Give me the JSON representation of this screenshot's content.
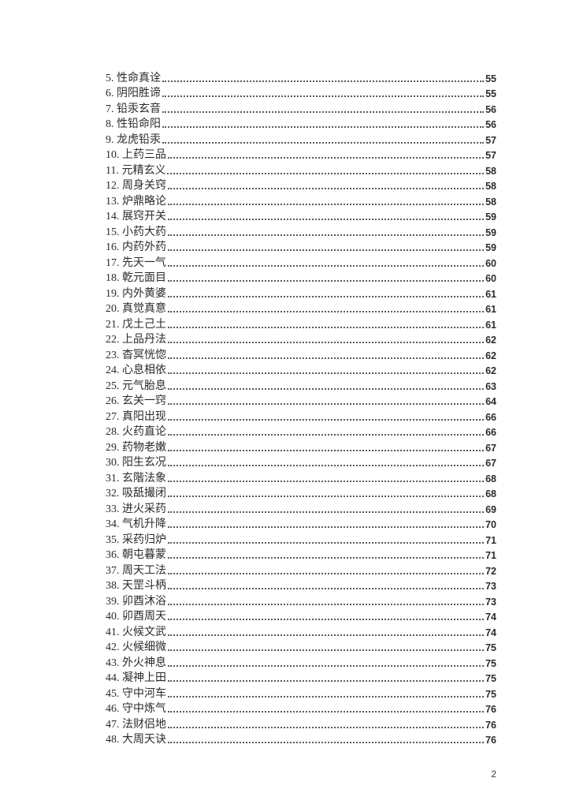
{
  "page": {
    "footer_page_number": "2"
  },
  "colors": {
    "background": "#ffffff",
    "text": "#2b2b2b",
    "dot_leader": "#5a5a5a"
  },
  "toc": {
    "entries": [
      {
        "num": "5",
        "title": "性命真诠",
        "page": "55"
      },
      {
        "num": "6",
        "title": "阴阳胜谛",
        "page": "55"
      },
      {
        "num": "7",
        "title": "铅汞玄音",
        "page": "56"
      },
      {
        "num": "8",
        "title": "性铅命阳",
        "page": "56"
      },
      {
        "num": "9",
        "title": "龙虎铅汞",
        "page": "57"
      },
      {
        "num": "10",
        "title": "上药三品",
        "page": "57"
      },
      {
        "num": "11",
        "title": "元精玄义",
        "page": "58"
      },
      {
        "num": "12",
        "title": "周身关窍",
        "page": "58"
      },
      {
        "num": "13",
        "title": "炉鼎略论",
        "page": "58"
      },
      {
        "num": "14",
        "title": "展窍开关",
        "page": "59"
      },
      {
        "num": "15",
        "title": "小药大药",
        "page": "59"
      },
      {
        "num": "16",
        "title": "内药外药",
        "page": "59"
      },
      {
        "num": "17",
        "title": "先天一气",
        "page": "60"
      },
      {
        "num": "18",
        "title": "乾元面目",
        "page": "60"
      },
      {
        "num": "19",
        "title": "内外黄婆",
        "page": "61"
      },
      {
        "num": "20",
        "title": "真觉真意",
        "page": "61"
      },
      {
        "num": "21",
        "title": "戊土己土",
        "page": "61"
      },
      {
        "num": "22",
        "title": "上品丹法",
        "page": "62"
      },
      {
        "num": "23",
        "title": "杳冥恍惚",
        "page": "62"
      },
      {
        "num": "24",
        "title": "心息相依",
        "page": "62"
      },
      {
        "num": "25",
        "title": "元气胎息",
        "page": "63"
      },
      {
        "num": "26",
        "title": "玄关一窍",
        "page": "64"
      },
      {
        "num": "27",
        "title": "真阳出现",
        "page": "66"
      },
      {
        "num": "28",
        "title": "火药直论",
        "page": "66"
      },
      {
        "num": "29",
        "title": "药物老嫩",
        "page": "67"
      },
      {
        "num": "30",
        "title": "阳生玄况",
        "page": "67"
      },
      {
        "num": "31",
        "title": "玄階法象",
        "page": "68"
      },
      {
        "num": "32",
        "title": "吸舐撮闭",
        "page": "68"
      },
      {
        "num": "33",
        "title": "进火采药",
        "page": "69"
      },
      {
        "num": "34",
        "title": "气机升降",
        "page": "70"
      },
      {
        "num": "35",
        "title": "采药归炉",
        "page": "71"
      },
      {
        "num": "36",
        "title": "朝屯暮蒙",
        "page": "71"
      },
      {
        "num": "37",
        "title": "周天工法",
        "page": "72"
      },
      {
        "num": "38",
        "title": "天罡斗柄",
        "page": "73"
      },
      {
        "num": "39",
        "title": "卯酉沐浴",
        "page": "73"
      },
      {
        "num": "40",
        "title": "卯酉周天",
        "page": "74"
      },
      {
        "num": "41",
        "title": "火候文武",
        "page": "74"
      },
      {
        "num": "42",
        "title": "火候细微",
        "page": "75"
      },
      {
        "num": "43",
        "title": "外火神息",
        "page": "75"
      },
      {
        "num": "44",
        "title": "凝神上田",
        "page": "75"
      },
      {
        "num": "45",
        "title": "守中河车",
        "page": "75"
      },
      {
        "num": "46",
        "title": "守中炼气",
        "page": "76"
      },
      {
        "num": "47",
        "title": "法财侣地",
        "page": "76"
      },
      {
        "num": "48",
        "title": "大周天诀",
        "page": "76"
      }
    ]
  }
}
